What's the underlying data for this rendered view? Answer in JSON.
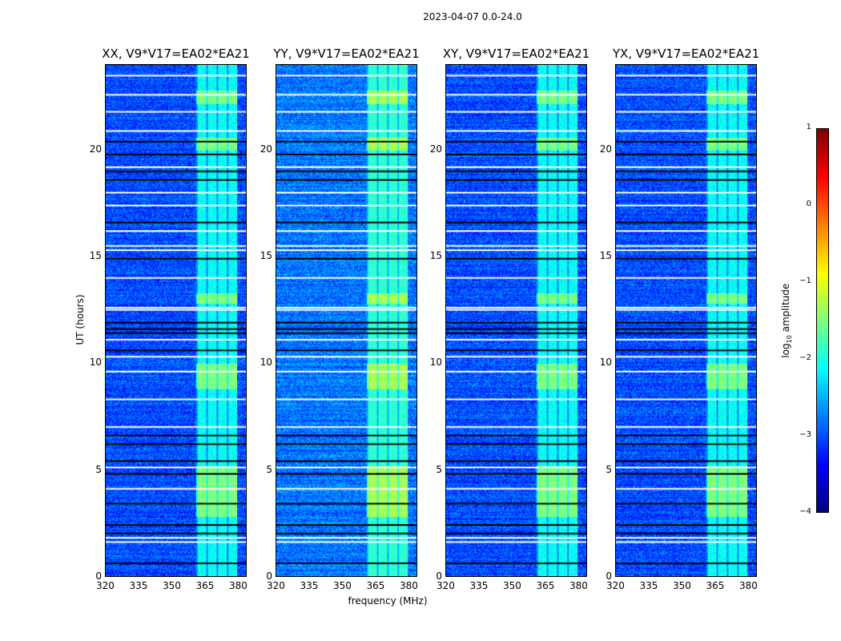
{
  "chart_data": {
    "type": "heatmap",
    "title": "2023-04-07 0.0-24.0",
    "xlabel": "frequency (MHz)",
    "ylabel": "UT (hours)",
    "xlim": [
      320,
      384
    ],
    "ylim": [
      0,
      24
    ],
    "xticks": [
      "320",
      "335",
      "350",
      "365",
      "380"
    ],
    "yticks": [
      "0",
      "5",
      "10",
      "15",
      "20"
    ],
    "panels": [
      {
        "title": "XX, V9*V17=EA02*EA21",
        "band_level": -1.6,
        "bg_level": -3.0
      },
      {
        "title": "YY, V9*V17=EA02*EA21",
        "band_level": -1.4,
        "bg_level": -2.8
      },
      {
        "title": "XY, V9*V17=EA02*EA21",
        "band_level": -1.6,
        "bg_level": -3.0
      },
      {
        "title": "YX, V9*V17=EA02*EA21",
        "band_level": -1.6,
        "bg_level": -3.0
      }
    ],
    "rfi_band_mhz": [
      361,
      380
    ],
    "strong_rfi_hours": [
      [
        2.8,
        5.2
      ],
      [
        8.8,
        10.0
      ],
      [
        12.8,
        13.3
      ],
      [
        20.0,
        20.6
      ],
      [
        22.2,
        22.8
      ]
    ],
    "flagged_white_hours": [
      1.6,
      1.8,
      4.1,
      5.1,
      7.0,
      8.3,
      9.6,
      10.3,
      11.1,
      12.5,
      12.6,
      14.0,
      15.3,
      15.5,
      16.2,
      17.4,
      18.0,
      19.2,
      20.9,
      21.8,
      22.6,
      23.5
    ],
    "flagged_black_hours": [
      0.6,
      2.0,
      2.4,
      3.4,
      4.8,
      5.4,
      6.2,
      6.6,
      10.6,
      11.4,
      11.6,
      11.9,
      14.9,
      16.6,
      18.6,
      19.0,
      19.8,
      20.4
    ],
    "colorbar": {
      "label": "log10 amplitude",
      "label_main": "log",
      "label_sub": "10",
      "label_rest": " amplitude",
      "range": [
        -4,
        1
      ],
      "ticks": [
        "1",
        "0",
        "−1",
        "−2",
        "−3",
        "−4"
      ],
      "colormap": "jet"
    }
  }
}
